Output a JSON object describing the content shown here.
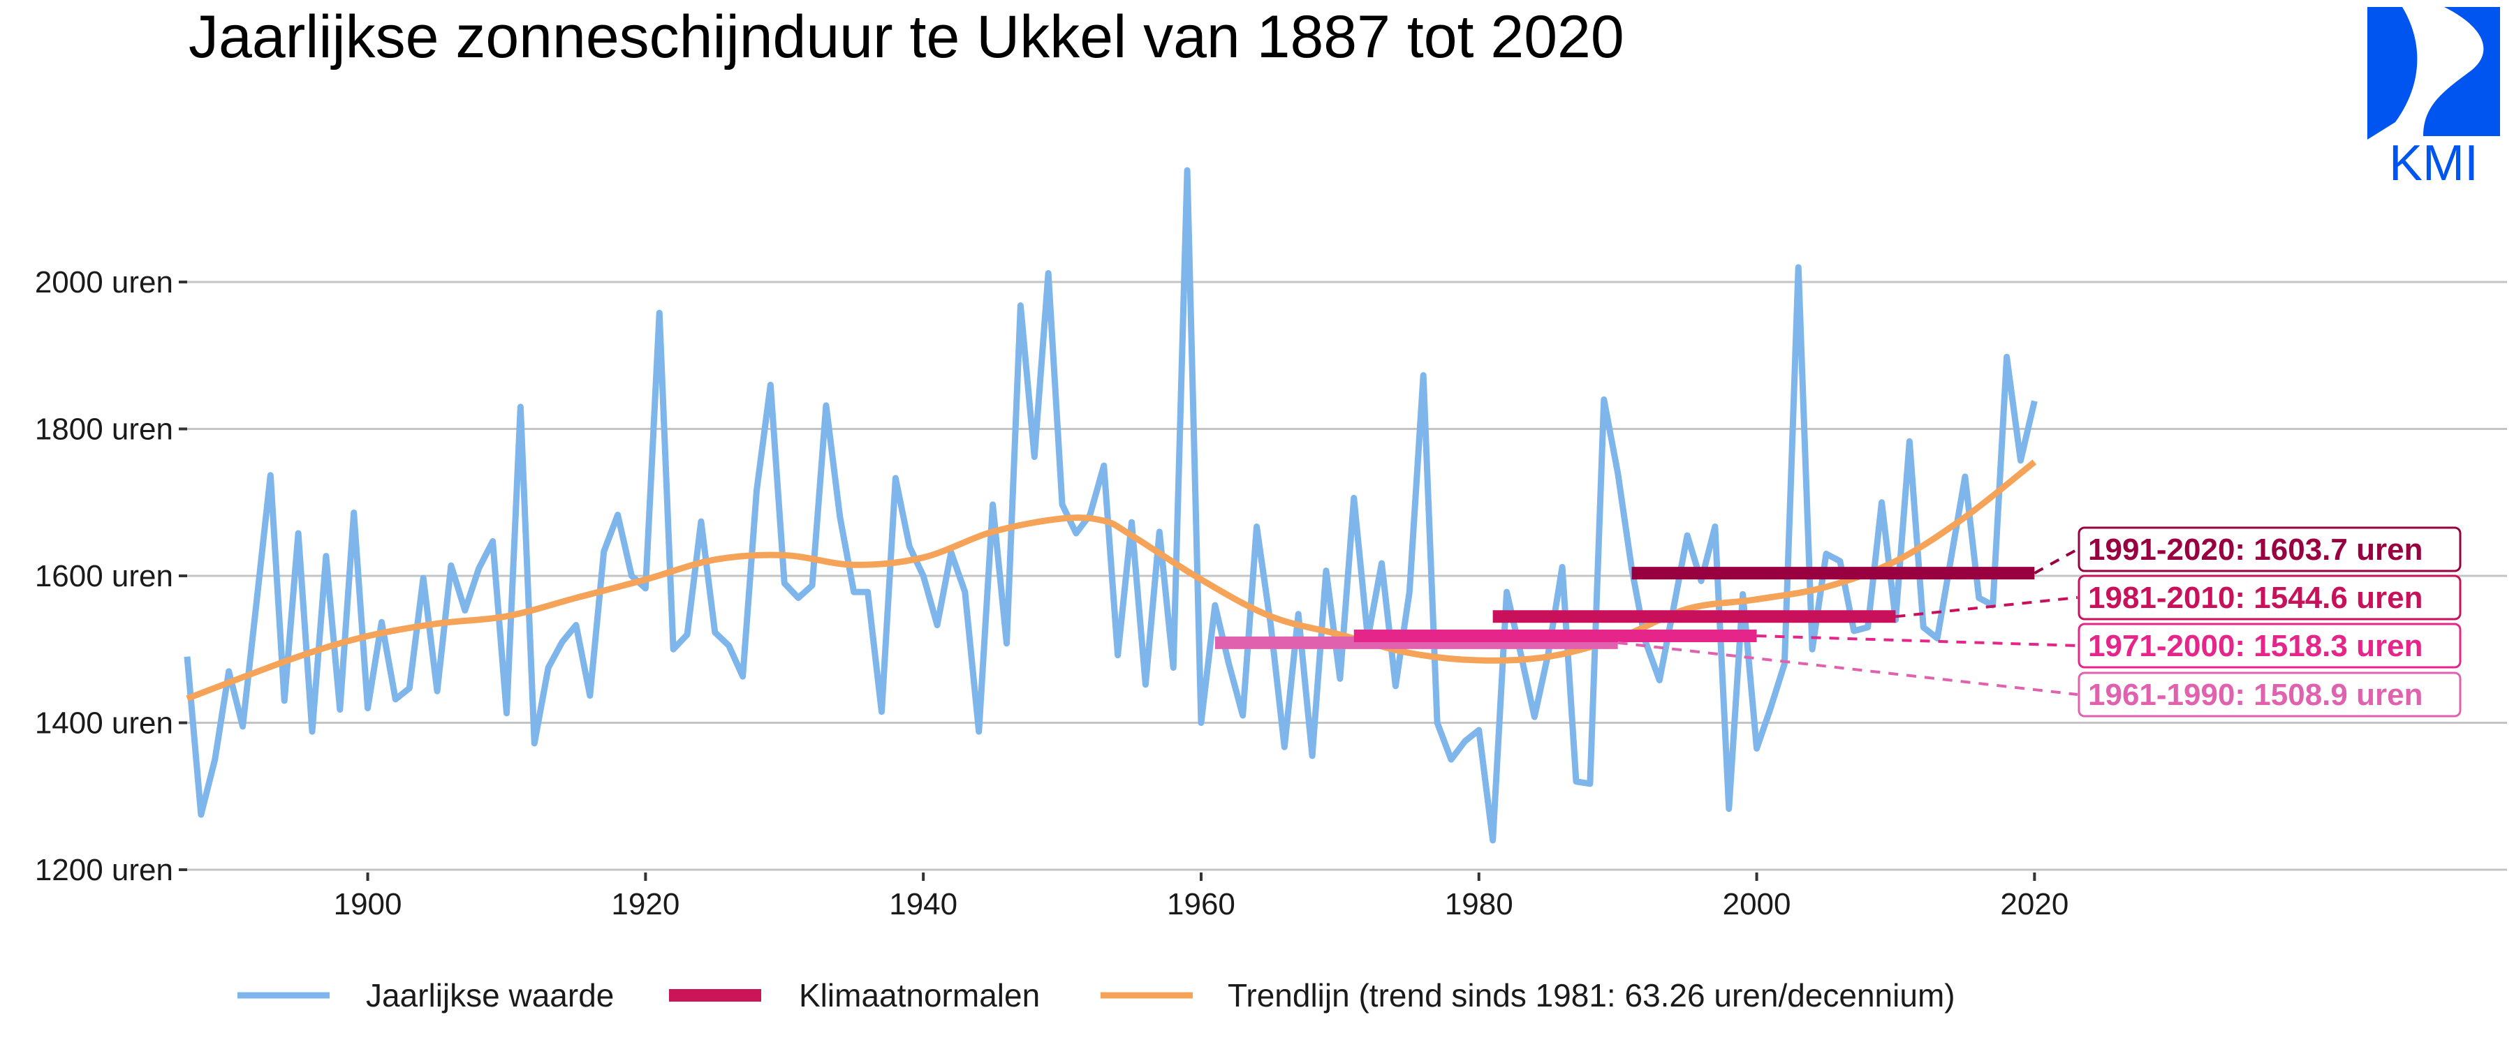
{
  "chart_data": {
    "type": "line",
    "title": "Jaarlijkse zonneschijnduur te Ukkel van 1887 tot 2020",
    "xlabel": "",
    "ylabel": "",
    "xlim": [
      1887,
      2053
    ],
    "ylim": [
      1200,
      2160
    ],
    "x_ticks": [
      1900,
      1920,
      1940,
      1960,
      1980,
      2000,
      2020
    ],
    "x_tick_labels": [
      "1900",
      "1920",
      "1940",
      "1960",
      "1980",
      "2000",
      "2020"
    ],
    "y_ticks": [
      1200,
      1400,
      1600,
      1800,
      2000
    ],
    "y_tick_labels": [
      "1200 uren",
      "1400 uren",
      "1600 uren",
      "1800 uren",
      "2000 uren"
    ],
    "grid": "horizontal",
    "legend_position": "bottom",
    "series": [
      {
        "name": "Jaarlijkse waarde",
        "color": "#7EB5EB",
        "start_year": 1887,
        "values": [
          1490,
          1275,
          1350,
          1470,
          1395,
          1565,
          1737,
          1430,
          1658,
          1388,
          1627,
          1418,
          1686,
          1420,
          1537,
          1432,
          1447,
          1597,
          1443,
          1614,
          1553,
          1610,
          1647,
          1413,
          1830,
          1372,
          1475,
          1510,
          1533,
          1437,
          1633,
          1683,
          1600,
          1583,
          1958,
          1500,
          1520,
          1674,
          1523,
          1505,
          1463,
          1716,
          1860,
          1590,
          1570,
          1587,
          1832,
          1680,
          1578,
          1578,
          1415,
          1733,
          1640,
          1600,
          1533,
          1632,
          1578,
          1388,
          1697,
          1508,
          1968,
          1762,
          2012,
          1697,
          1658,
          1683,
          1750,
          1492,
          1673,
          1452,
          1660,
          1475,
          2152,
          1400,
          1560,
          1480,
          1410,
          1667,
          1535,
          1367,
          1548,
          1355,
          1607,
          1460,
          1706,
          1515,
          1617,
          1450,
          1578,
          1873,
          1400,
          1350,
          1375,
          1390,
          1240,
          1578,
          1495,
          1408,
          1495,
          1612,
          1320,
          1317,
          1840,
          1740,
          1610,
          1510,
          1458,
          1555,
          1655,
          1593,
          1667,
          1283,
          1575,
          1365,
          1420,
          1480,
          2020,
          1500,
          1630,
          1620,
          1525,
          1530,
          1700,
          1540,
          1783,
          1530,
          1515,
          1625,
          1735,
          1570,
          1560,
          1898,
          1757,
          1838
        ]
      },
      {
        "name": "Trendlijn (trend sinds 1981: 63.26 uren/decennium)",
        "color": "#F6A35A",
        "x": [
          1887,
          1895,
          1900,
          1905,
          1910,
          1915,
          1920,
          1925,
          1930,
          1935,
          1940,
          1945,
          1950,
          1953,
          1955,
          1960,
          1965,
          1970,
          1975,
          1980,
          1985,
          1990,
          1995,
          2000,
          2005,
          2010,
          2015,
          2020
        ],
        "values": [
          1433,
          1490,
          1518,
          1535,
          1545,
          1570,
          1595,
          1622,
          1628,
          1615,
          1625,
          1660,
          1678,
          1675,
          1655,
          1595,
          1545,
          1520,
          1495,
          1485,
          1490,
          1515,
          1555,
          1568,
          1585,
          1620,
          1680,
          1755
        ]
      }
    ],
    "normals_legend": "Klimaatnormalen",
    "normals_legend_color": "#CC1559",
    "normals": [
      {
        "period": [
          1961,
          1990
        ],
        "value": 1508.9,
        "label": "1961-1990: 1508.9 uren",
        "color": "#E062AE"
      },
      {
        "period": [
          1971,
          2000
        ],
        "value": 1518.3,
        "label": "1971-2000: 1518.3 uren",
        "color": "#E5258A"
      },
      {
        "period": [
          1981,
          2010
        ],
        "value": 1544.6,
        "label": "1981-2010: 1544.6 uren",
        "color": "#C8115A"
      },
      {
        "period": [
          1991,
          2020
        ],
        "value": 1603.7,
        "label": "1991-2020: 1603.7 uren",
        "color": "#99003F"
      }
    ]
  },
  "logo": {
    "text": "KMI",
    "color": "#0055F0"
  }
}
